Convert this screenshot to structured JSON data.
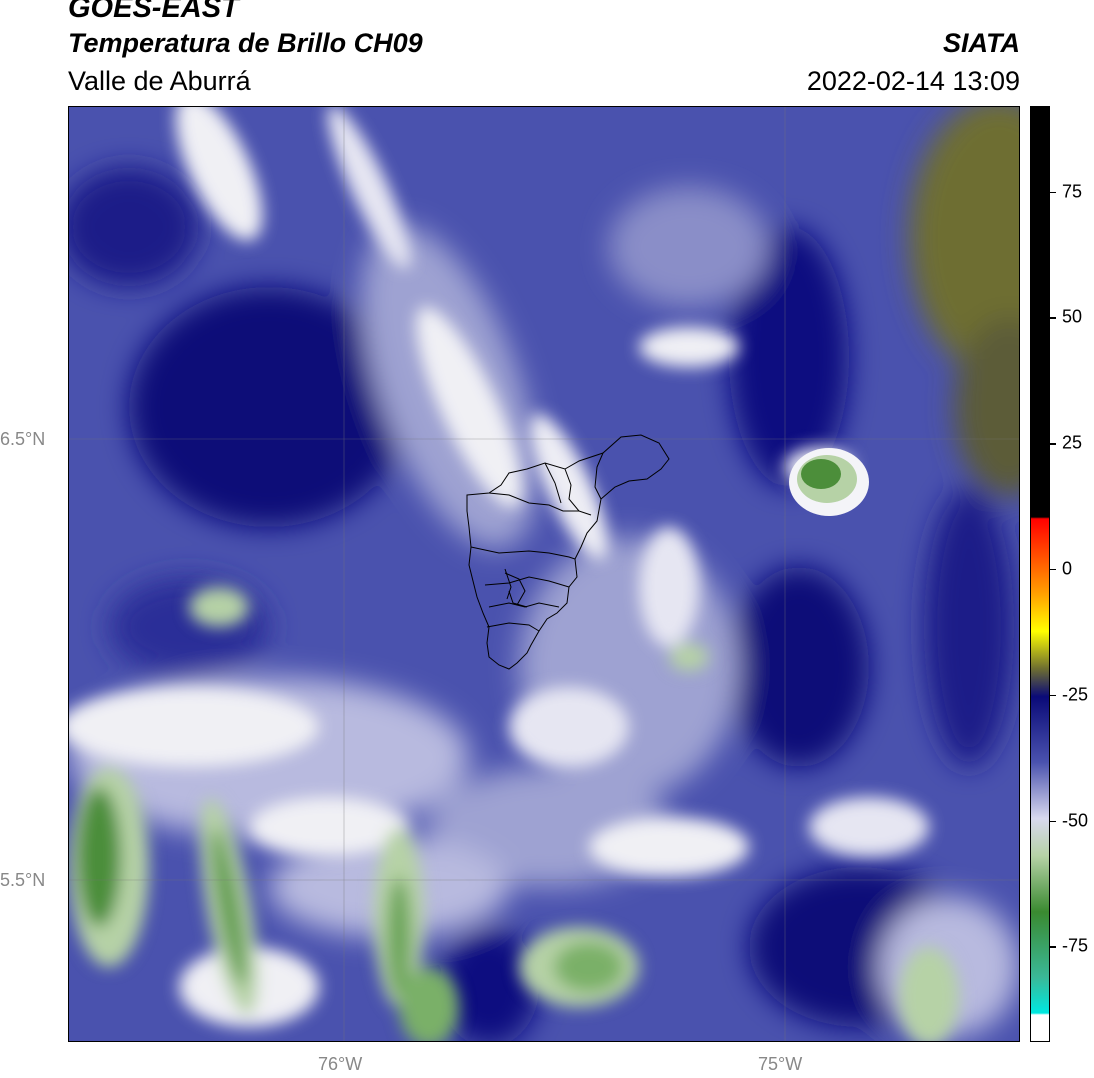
{
  "header": {
    "satellite": "GOES-EAST",
    "product": "Temperatura de Brillo CH09",
    "region": "Valle de Aburrá",
    "agency": "SIATA",
    "datetime": "2022-02-14 13:09"
  },
  "map": {
    "lat_ticks": [
      {
        "value": 6.5,
        "label": "6.5°N"
      },
      {
        "value": 5.5,
        "label": "5.5°N"
      }
    ],
    "lon_ticks": [
      {
        "value": -76,
        "label": "76°W"
      },
      {
        "value": -75,
        "label": "75°W"
      }
    ],
    "colors": {
      "deep_blue": "#0a0a78",
      "mid_blue": "#4a52ae",
      "light_blue": "#9ea2d2",
      "white": "#f0f0f4",
      "light_green": "#b6d2a6",
      "green": "#4c8e3a",
      "olive": "#6e6e30",
      "boundary": "#000000"
    }
  },
  "colorbar": {
    "ticks": [
      {
        "value": 75,
        "label": "75"
      },
      {
        "value": 50,
        "label": "50"
      },
      {
        "value": 25,
        "label": "25"
      },
      {
        "value": 0,
        "label": "0"
      },
      {
        "value": -25,
        "label": "-25"
      },
      {
        "value": -50,
        "label": "-50"
      },
      {
        "value": -75,
        "label": "-75"
      }
    ],
    "range": [
      -94,
      92
    ]
  }
}
